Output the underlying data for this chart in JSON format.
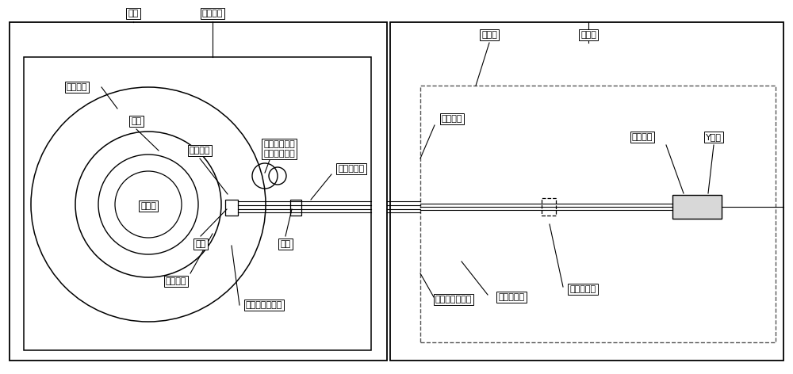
{
  "bg_color": "#ffffff",
  "line_color": "#000000",
  "fig_width": 10.0,
  "fig_height": 4.72,
  "labels": {
    "wenxiang": "温筱",
    "genzhen": "隔振工装",
    "cipingzhao": "磁屏蔽罩",
    "weijing": "尾纤",
    "tiejiaodai1": "贴胶带处",
    "yiduan": "一端长出的尾\n纤：盘成小圈",
    "guangxianhuan": "光纤环",
    "jiaodai1": "胶带",
    "jiaodai2": "胶带",
    "tiejiaodai2": "贴胶带处",
    "cipingchugou": "磁屏蔽罩出纤口",
    "guangxiantaoguan": "光纤套管",
    "wenxiangchugou": "温筱出纤口",
    "genzhenzhugou": "隔振工装出纤槽",
    "fengfenggai": "防风盖",
    "cesbitai": "测试台",
    "bodaoweiJing": "波导尾纤",
    "Ybodao": "Y波导",
    "guangxianhuan_weiJing": "光纤环尾纤",
    "guangxianrong": "光纤燔接点"
  }
}
